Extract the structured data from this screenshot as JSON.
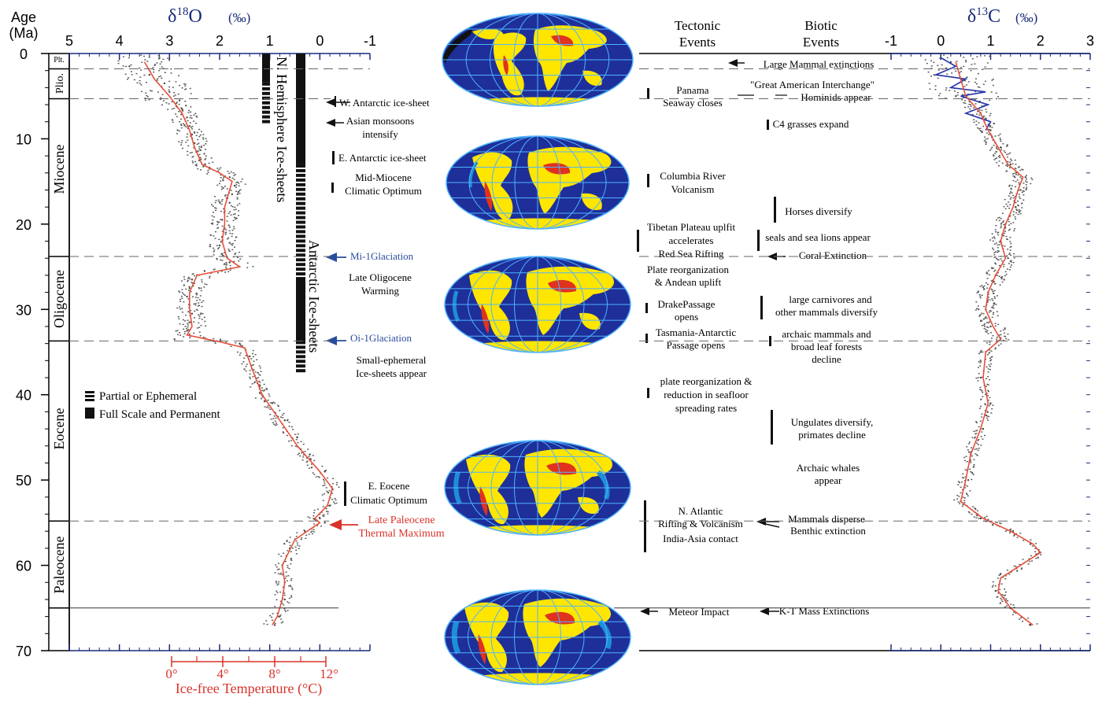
{
  "age_axis": {
    "title": "Age",
    "unit": "(Ma)",
    "ticks": [
      "0",
      "10",
      "20",
      "30",
      "40",
      "50",
      "60",
      "70"
    ],
    "range": [
      0,
      70
    ]
  },
  "epochs": [
    "Plt.",
    "Plio.",
    "Miocene",
    "Oligocene",
    "Eocene",
    "Paleocene"
  ],
  "d18o_axis": {
    "title": "δ18O",
    "unit": "(‰)",
    "ticks": [
      "5",
      "4",
      "3",
      "2",
      "1",
      "0",
      "-1"
    ],
    "range": [
      5,
      -1
    ]
  },
  "temperature_axis": {
    "title": "Ice-free Temperature (°C)",
    "ticks": [
      "0°",
      "4°",
      "8°",
      "12°"
    ],
    "color": "#d8332a"
  },
  "d13c_axis": {
    "title": "δ13C",
    "unit": "(‰)",
    "ticks": [
      "-1",
      "0",
      "1",
      "2",
      "3"
    ],
    "range": [
      -1,
      3
    ]
  },
  "ice_sheet_labels": {
    "north": "N. Hemisphere Ice-sheets",
    "antarctic": "Antarctic Ice-sheets"
  },
  "legend": {
    "partial": "Partial or Ephemeral",
    "full": "Full Scale and Permanent"
  },
  "climate_events": [
    {
      "text": "W. Antarctic ice-sheet",
      "color": "#111111"
    },
    {
      "text": "Asian monsoons intensify",
      "color": "#111111"
    },
    {
      "text": "E. Antarctic ice-sheet",
      "color": "#111111"
    },
    {
      "text": "Mid-Miocene Climatic Optimum",
      "color": "#111111"
    },
    {
      "text": "Mi-1Glaciation",
      "color": "#2a4c9c"
    },
    {
      "text": "Late Oligocene Warming",
      "color": "#111111"
    },
    {
      "text": "Oi-1Glaciation",
      "color": "#2a4c9c"
    },
    {
      "text": "Small-ephemeral Ice-sheets appear",
      "color": "#111111"
    },
    {
      "text": "E. Eocene Climatic Optimum",
      "color": "#111111"
    },
    {
      "text": "Late Paleocene Thermal Maximum",
      "color": "#d8332a"
    }
  ],
  "tectonic_title": "Tectonic Events",
  "tectonic_events": [
    "Panama Seaway closes",
    "Columbia River Volcanism",
    "Tibetan Plateau uplfit accelerates",
    "Red Sea Rifting",
    "Plate reorganization & Andean uplift",
    "DrakePassage opens",
    "Tasmania-Antarctic Passage opens",
    "plate reorganization & reduction in seafloor spreading rates",
    "N. Atlantic Rifting & Volcanism",
    "India-Asia contact",
    "Meteor Impact"
  ],
  "biotic_title": "Biotic Events",
  "biotic_events": [
    "Large Mammal extinctions",
    "\"Great American Interchange\"",
    "Hominids appear",
    "C4 grasses expand",
    "Horses diversify",
    "seals and sea lions appear",
    "Coral Extinction",
    "large carnivores and other mammals diversify",
    "archaic mammals and broad leaf forests decline",
    "Ungulates diversify, primates decline",
    "Archaic whales appear",
    "Mammals disperse",
    "Benthic extinction",
    "K-T Mass Extinctions"
  ],
  "colors": {
    "axis": "#1a2a7a",
    "d18o_points": "#555555",
    "fit_line": "#e8503a",
    "d13c_recent": "#2233aa",
    "ocean": "#1e2f9a",
    "shelf": "#1c8fd8",
    "land": "#ffe600",
    "upland": "#e0321e"
  },
  "chart_data": [
    {
      "type": "scatter",
      "title": "δ18O (‰)",
      "ylabel": "Age (Ma)",
      "xlim": [
        5,
        -1
      ],
      "ylim": [
        0,
        70
      ],
      "series": [
        {
          "points": [
            [
              3.2,
              0.5
            ],
            [
              3.8,
              1.5
            ],
            [
              3.4,
              2.5
            ],
            [
              3.1,
              3.5
            ],
            [
              3.0,
              4.5
            ],
            [
              2.8,
              5.5
            ],
            [
              2.75,
              6.5
            ],
            [
              2.65,
              7.5
            ],
            [
              2.6,
              8.5
            ],
            [
              2.55,
              9.5
            ],
            [
              2.5,
              10.5
            ],
            [
              2.45,
              11.5
            ],
            [
              2.4,
              12.5
            ],
            [
              2.2,
              13.5
            ],
            [
              1.8,
              14.5
            ],
            [
              1.7,
              15.5
            ],
            [
              1.75,
              16.5
            ],
            [
              1.8,
              17.5
            ],
            [
              1.9,
              18.5
            ],
            [
              1.95,
              19.5
            ],
            [
              1.9,
              20.5
            ],
            [
              1.95,
              21.5
            ],
            [
              2.0,
              22.5
            ],
            [
              1.95,
              23.5
            ],
            [
              1.8,
              24.5
            ],
            [
              2.3,
              25.5
            ],
            [
              2.55,
              26.5
            ],
            [
              2.6,
              27.5
            ],
            [
              2.65,
              28.5
            ],
            [
              2.6,
              29.5
            ],
            [
              2.55,
              30.5
            ],
            [
              2.6,
              31.5
            ],
            [
              2.65,
              32.5
            ],
            [
              2.9,
              33.5
            ],
            [
              1.6,
              34.0
            ],
            [
              1.4,
              35.5
            ],
            [
              1.35,
              37
            ],
            [
              1.2,
              39
            ],
            [
              0.95,
              41
            ],
            [
              0.7,
              43
            ],
            [
              0.45,
              45
            ],
            [
              0.2,
              47
            ],
            [
              -0.1,
              49
            ],
            [
              -0.25,
              51
            ],
            [
              -0.2,
              53
            ],
            [
              0.0,
              54.5
            ],
            [
              -0.1,
              55
            ],
            [
              0.3,
              56
            ],
            [
              0.6,
              58
            ],
            [
              0.75,
              60
            ],
            [
              0.7,
              62
            ],
            [
              0.7,
              64
            ],
            [
              0.8,
              66
            ],
            [
              0.9,
              67
            ]
          ]
        }
      ],
      "fit_line": {
        "age": [
          1,
          3,
          5,
          7,
          9,
          11,
          13,
          14,
          15,
          16,
          18,
          20,
          22,
          24,
          25,
          26,
          28,
          30,
          32,
          33,
          33.8,
          34.5,
          37,
          40,
          43,
          46,
          49,
          51,
          53,
          54.5,
          55,
          57,
          60,
          62,
          64,
          66,
          67
        ],
        "d18o": [
          3.5,
          3.3,
          3.0,
          2.75,
          2.6,
          2.5,
          2.35,
          2.0,
          1.75,
          1.8,
          1.9,
          1.9,
          1.95,
          1.85,
          1.6,
          2.45,
          2.6,
          2.6,
          2.55,
          2.65,
          2.0,
          1.5,
          1.35,
          1.15,
          0.8,
          0.45,
          0.0,
          -0.25,
          -0.15,
          0.1,
          0.0,
          0.5,
          0.75,
          0.7,
          0.75,
          0.85,
          0.95
        ]
      }
    },
    {
      "type": "scatter",
      "title": "δ13C (‰)",
      "ylabel": "Age (Ma)",
      "xlim": [
        -1,
        3
      ],
      "ylim": [
        0,
        70
      ],
      "series": [
        {
          "points": [
            [
              0.2,
              1
            ],
            [
              0.4,
              3
            ],
            [
              0.3,
              5
            ],
            [
              0.8,
              7
            ],
            [
              1.0,
              9
            ],
            [
              1.2,
              11
            ],
            [
              1.4,
              13
            ],
            [
              1.7,
              14.5
            ],
            [
              1.6,
              16
            ],
            [
              1.5,
              18
            ],
            [
              1.3,
              20
            ],
            [
              1.2,
              22
            ],
            [
              1.35,
              24
            ],
            [
              1.1,
              26
            ],
            [
              0.95,
              28
            ],
            [
              0.9,
              30
            ],
            [
              1.0,
              32
            ],
            [
              1.2,
              33.5
            ],
            [
              0.8,
              35
            ],
            [
              0.8,
              38
            ],
            [
              1.0,
              41
            ],
            [
              0.85,
              44
            ],
            [
              0.6,
              47
            ],
            [
              0.55,
              50
            ],
            [
              0.4,
              52.5
            ],
            [
              0.8,
              54.5
            ],
            [
              1.4,
              56
            ],
            [
              1.8,
              57.5
            ],
            [
              2.0,
              58.5
            ],
            [
              1.2,
              61
            ],
            [
              1.1,
              63
            ],
            [
              1.4,
              65
            ],
            [
              1.8,
              67
            ]
          ]
        },
        {
          "name": "",
          "points": [
            [
              0.0,
              0.5
            ],
            [
              0.3,
              1.5
            ],
            [
              -0.1,
              2.5
            ],
            [
              0.5,
              3
            ],
            [
              0.2,
              4
            ],
            [
              0.9,
              4.5
            ],
            [
              0.4,
              5
            ],
            [
              0.95,
              6
            ],
            [
              0.5,
              7
            ],
            [
              1.0,
              8
            ],
            [
              0.9,
              9
            ]
          ]
        }
      ],
      "fit_line": {
        "age": [
          1,
          3,
          5,
          7,
          9,
          11,
          13,
          14.5,
          16,
          18,
          20,
          22,
          24,
          26,
          28,
          30,
          32,
          33.5,
          35,
          38,
          41,
          44,
          47,
          50,
          52.5,
          54.5,
          56,
          57.5,
          58.5,
          60,
          61.5,
          63,
          65,
          67
        ],
        "d13c": [
          0.3,
          0.4,
          0.5,
          0.8,
          0.95,
          1.15,
          1.35,
          1.65,
          1.55,
          1.45,
          1.3,
          1.2,
          1.3,
          1.1,
          0.95,
          0.9,
          1.05,
          1.2,
          0.9,
          0.85,
          0.95,
          0.8,
          0.6,
          0.5,
          0.4,
          0.85,
          1.4,
          1.85,
          2.0,
          1.6,
          1.2,
          1.15,
          1.4,
          1.85
        ]
      }
    }
  ]
}
